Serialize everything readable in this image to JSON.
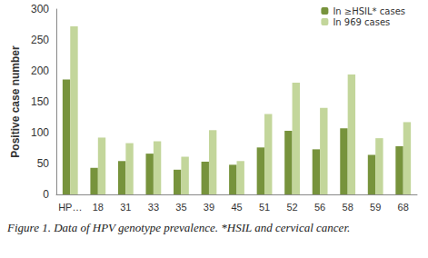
{
  "chart_data": {
    "type": "bar",
    "categories": [
      "HP…",
      "18",
      "31",
      "33",
      "35",
      "39",
      "45",
      "51",
      "52",
      "56",
      "58",
      "59",
      "68"
    ],
    "series": [
      {
        "name": "In ≥HSIL* cases",
        "color": "#77933c",
        "values": [
          186,
          43,
          54,
          66,
          40,
          53,
          48,
          76,
          103,
          73,
          107,
          64,
          78
        ]
      },
      {
        "name": "In 969 cases",
        "color": "#c3d69b",
        "values": [
          272,
          92,
          83,
          86,
          61,
          104,
          54,
          130,
          181,
          140,
          194,
          91,
          117
        ]
      }
    ],
    "y_label": "Positive case number",
    "ylim": [
      0,
      300
    ],
    "yticks": [
      0,
      50,
      100,
      150,
      200,
      250,
      300
    ],
    "grid": false,
    "legend": "upper right",
    "annotations": [
      "Figure 1. Data of HPV genotype prevalence. *HSIL and cervical cancer."
    ]
  }
}
